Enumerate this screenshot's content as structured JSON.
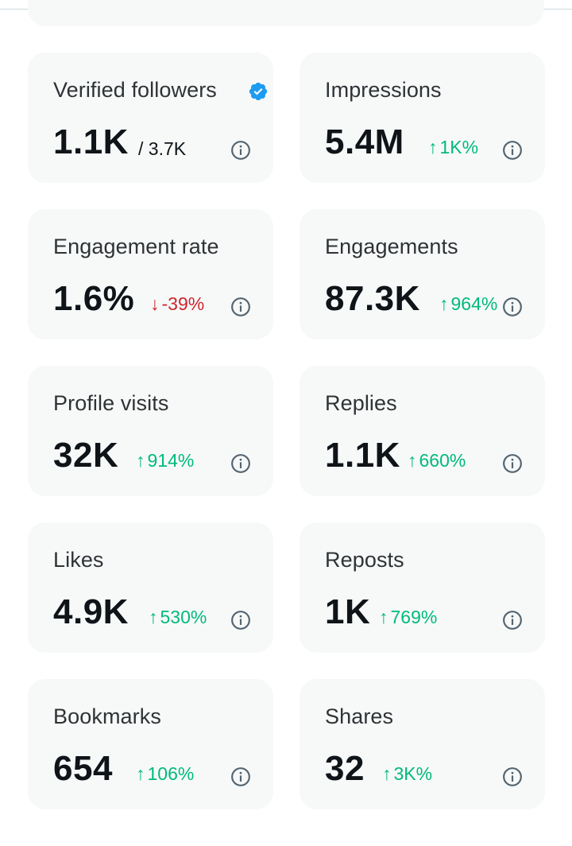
{
  "metrics": [
    {
      "label": "Verified followers",
      "value": "1.1K",
      "sub": "/ 3.7K",
      "delta": "",
      "direction": "",
      "verified_icon": "verified-badge-icon"
    },
    {
      "label": "Impressions",
      "value": "5.4M",
      "delta": "1K%",
      "direction": "up"
    },
    {
      "label": "Engagement rate",
      "value": "1.6%",
      "delta": "-39%",
      "direction": "down"
    },
    {
      "label": "Engagements",
      "value": "87.3K",
      "delta": "964%",
      "direction": "up"
    },
    {
      "label": "Profile visits",
      "value": "32K",
      "delta": "914%",
      "direction": "up"
    },
    {
      "label": "Replies",
      "value": "1.1K",
      "delta": "660%",
      "direction": "up"
    },
    {
      "label": "Likes",
      "value": "4.9K",
      "delta": "530%",
      "direction": "up"
    },
    {
      "label": "Reposts",
      "value": "1K",
      "delta": "769%",
      "direction": "up"
    },
    {
      "label": "Bookmarks",
      "value": "654",
      "delta": "106%",
      "direction": "up"
    },
    {
      "label": "Shares",
      "value": "32",
      "delta": "3K%",
      "direction": "up"
    }
  ],
  "colors": {
    "card_bg": "#f7f9f9",
    "up": "#00ba7c",
    "down": "#d0242e",
    "verified": "#1d9bf0",
    "text": "#0f1419"
  },
  "icons": {
    "info": "info-circle-icon",
    "up": "arrow-up-icon",
    "down": "arrow-down-icon"
  }
}
